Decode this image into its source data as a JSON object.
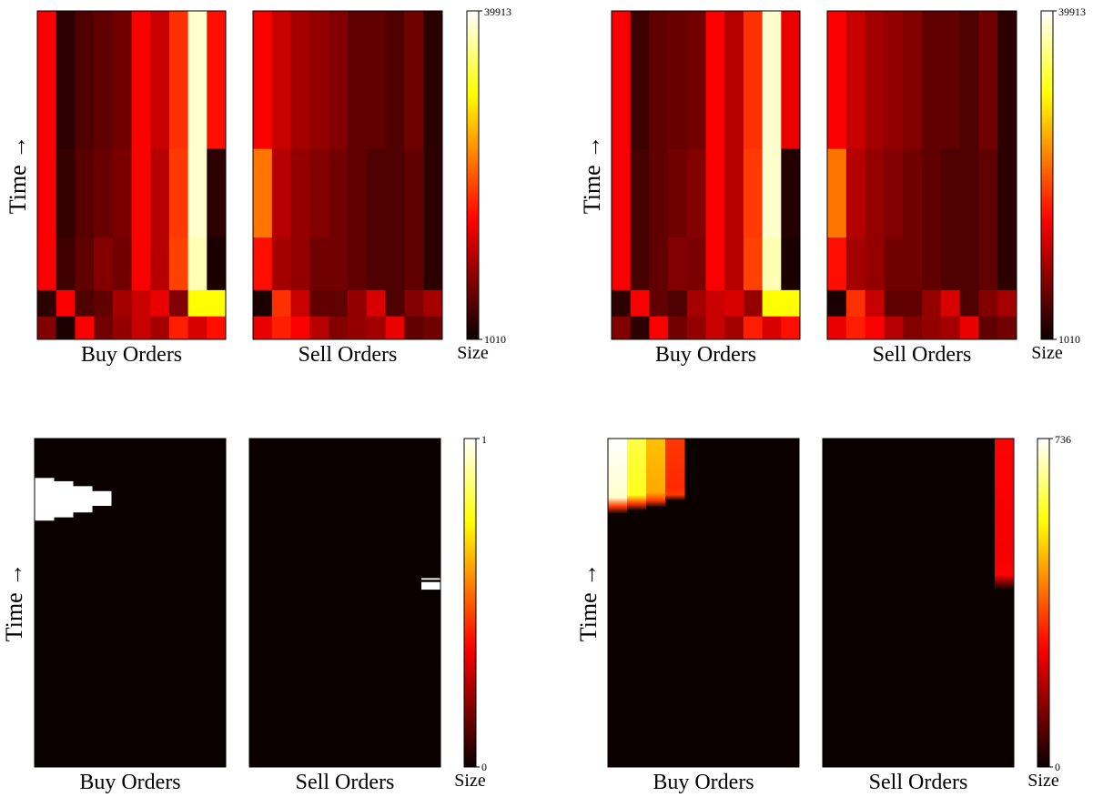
{
  "chart_data": [
    {
      "type": "heatmap",
      "panel": "top-left",
      "ylabel": "Time →",
      "colormap": "hot",
      "colorbar": {
        "min": 1010,
        "max": 39913,
        "min_label": "1010",
        "max_label": "39913",
        "label": "Size"
      },
      "heatmaps": [
        {
          "xlabel": "Buy Orders",
          "columns": 10,
          "rows": [
            [
              15000,
              3000,
              5000,
              6000,
              7000,
              15000,
              12000,
              18000,
              38000,
              16000
            ],
            [
              15000,
              3500,
              5500,
              6500,
              7500,
              15000,
              11000,
              18500,
              38000,
              3000
            ],
            [
              15000,
              4000,
              6000,
              8000,
              7000,
              15000,
              11000,
              19000,
              37000,
              2000
            ],
            [
              3000,
              15000,
              5000,
              6000,
              10000,
              12000,
              14000,
              8000,
              30000,
              30000
            ],
            [
              8000,
              2000,
              15000,
              7000,
              9000,
              12000,
              10000,
              17000,
              13000,
              16000
            ]
          ]
        },
        {
          "xlabel": "Sell Orders",
          "columns": 10,
          "rows": [
            [
              15000,
              12000,
              10000,
              9000,
              8000,
              6000,
              6000,
              5000,
              7000,
              3000
            ],
            [
              22000,
              11000,
              9000,
              8000,
              7000,
              6000,
              5000,
              5000,
              6000,
              3000
            ],
            [
              16000,
              10000,
              9000,
              7000,
              7000,
              6000,
              5000,
              5000,
              6000,
              3000
            ],
            [
              2000,
              18000,
              12000,
              6000,
              6000,
              9000,
              13000,
              5000,
              8000,
              10000
            ],
            [
              14000,
              17000,
              15000,
              11000,
              8000,
              9000,
              10000,
              14000,
              6000,
              7000
            ]
          ]
        }
      ]
    },
    {
      "type": "heatmap",
      "panel": "top-right",
      "ylabel": "Time →",
      "colormap": "hot",
      "colorbar": {
        "min": 1010,
        "max": 39913,
        "min_label": "1010",
        "max_label": "39913",
        "label": "Size"
      },
      "heatmaps": [
        {
          "xlabel": "Buy Orders",
          "columns": 10,
          "rows": [
            [
              15000,
              4000,
              6000,
              6500,
              7000,
              15000,
              11000,
              18000,
              38000,
              14000
            ],
            [
              15000,
              4500,
              6000,
              7000,
              8000,
              15000,
              11000,
              18500,
              38000,
              2500
            ],
            [
              15000,
              4500,
              6000,
              8000,
              7500,
              15000,
              11000,
              19000,
              37000,
              2000
            ],
            [
              3000,
              15000,
              6000,
              5000,
              10000,
              12000,
              13000,
              9000,
              30000,
              30000
            ],
            [
              8000,
              3000,
              15000,
              7000,
              9000,
              12000,
              10000,
              17000,
              13000,
              16000
            ]
          ]
        },
        {
          "xlabel": "Sell Orders",
          "columns": 10,
          "rows": [
            [
              15000,
              12000,
              10000,
              9000,
              8000,
              6000,
              6000,
              5000,
              7000,
              3000
            ],
            [
              22000,
              11000,
              9000,
              8000,
              7000,
              6000,
              5000,
              5000,
              6000,
              3000
            ],
            [
              16000,
              10000,
              9000,
              7000,
              7000,
              6000,
              5000,
              5000,
              6000,
              3000
            ],
            [
              2000,
              18000,
              12000,
              6000,
              6000,
              9000,
              13000,
              5000,
              8000,
              10000
            ],
            [
              14000,
              17000,
              15000,
              11000,
              8000,
              9000,
              10000,
              14000,
              6000,
              7000
            ]
          ]
        }
      ]
    },
    {
      "type": "heatmap",
      "panel": "bottom-left",
      "ylabel": "Time →",
      "colormap": "hot",
      "colorbar": {
        "min": 0,
        "max": 1,
        "min_label": "0",
        "max_label": "1",
        "label": "Size"
      },
      "heatmaps": [
        {
          "xlabel": "Buy Orders",
          "background": 0,
          "blocks": [
            {
              "col": 0,
              "row_start": 0.12,
              "row_end": 0.25,
              "value": 1
            },
            {
              "col": 1,
              "row_start": 0.13,
              "row_end": 0.24,
              "value": 1
            },
            {
              "col": 2,
              "row_start": 0.145,
              "row_end": 0.225,
              "value": 1
            },
            {
              "col": 3,
              "row_start": 0.16,
              "row_end": 0.205,
              "value": 1
            }
          ]
        },
        {
          "xlabel": "Sell Orders",
          "background": 0,
          "blocks": [
            {
              "col": 9,
              "row_start": 0.425,
              "row_end": 0.43,
              "value": 1
            },
            {
              "col": 9,
              "row_start": 0.437,
              "row_end": 0.46,
              "value": 1
            }
          ]
        }
      ]
    },
    {
      "type": "heatmap",
      "panel": "bottom-right",
      "ylabel": "Time →",
      "colormap": "hot",
      "colorbar": {
        "min": 0,
        "max": 736,
        "min_label": "0",
        "max_label": "736",
        "label": "Size"
      },
      "heatmaps": [
        {
          "xlabel": "Buy Orders",
          "background": 0,
          "blocks": [
            {
              "col": 0,
              "row_start": 0.0,
              "row_end": 0.23,
              "value": 736,
              "fade": true
            },
            {
              "col": 1,
              "row_start": 0.0,
              "row_end": 0.22,
              "value": 600,
              "fade": true
            },
            {
              "col": 2,
              "row_start": 0.0,
              "row_end": 0.21,
              "value": 480,
              "fade": true
            },
            {
              "col": 3,
              "row_start": 0.0,
              "row_end": 0.19,
              "value": 330,
              "fade": true
            }
          ]
        },
        {
          "xlabel": "Sell Orders",
          "background": 0,
          "blocks": [
            {
              "col": 9,
              "row_start": 0.0,
              "row_end": 0.46,
              "value": 270,
              "fade": true
            }
          ]
        }
      ]
    }
  ]
}
